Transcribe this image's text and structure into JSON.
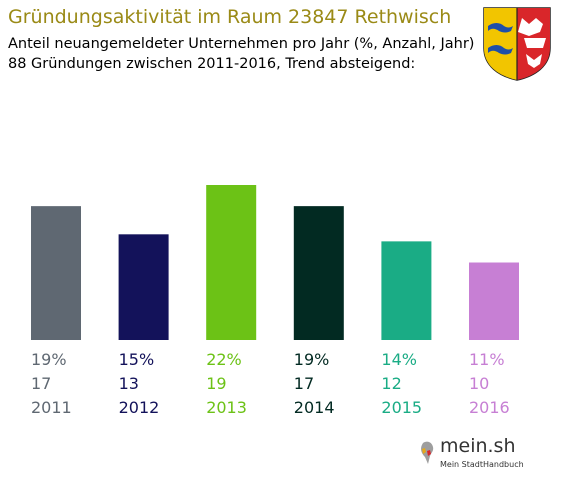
{
  "header": {
    "title": "Gründungsaktivität im Raum 23847 Rethwisch",
    "subtitle_line1": "Anteil neuangemeldeter Unternehmen pro Jahr (%, Anzahl, Jahr)",
    "subtitle_line2": "88 Gründungen zwischen 2011-2016, Trend absteigend:"
  },
  "colors": {
    "title": "#9a8a16",
    "bars": [
      "#5f6872",
      "#13125a",
      "#6cc216",
      "#022a22",
      "#1aac85",
      "#c77fd4"
    ]
  },
  "logo": {
    "name": "mein.sh",
    "tagline": "Mein StadtHandbuch",
    "crest_icon": "schleswig-holstein-crest-icon"
  },
  "chart_data": {
    "type": "bar",
    "categories": [
      "2011",
      "2012",
      "2013",
      "2014",
      "2015",
      "2016"
    ],
    "series": [
      {
        "values": [
          19,
          15,
          22,
          19,
          14,
          11
        ]
      }
    ],
    "counts": [
      17,
      13,
      19,
      17,
      12,
      10
    ],
    "percent_labels": [
      "19%",
      "15%",
      "22%",
      "19%",
      "14%",
      "11%"
    ],
    "ylim": [
      0,
      22
    ],
    "grid": false,
    "legend": "none"
  }
}
